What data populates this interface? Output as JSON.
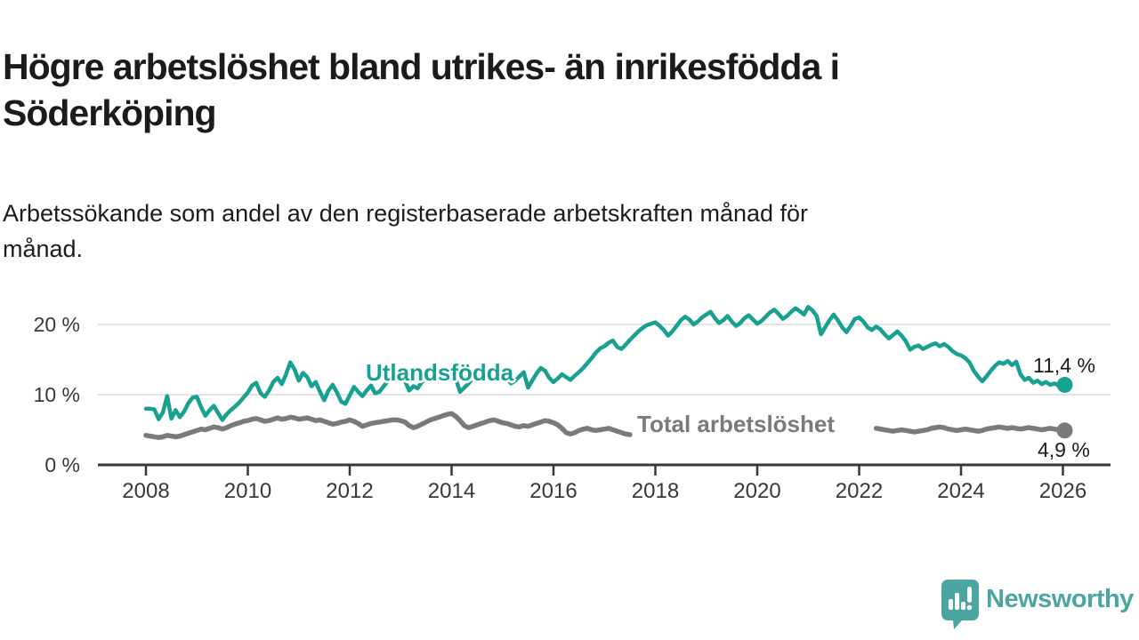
{
  "header": {
    "title_line1": "Högre arbetslöshet bland utrikes- än inrikesfödda i",
    "title_line2": "Söderköping",
    "subtitle_line1": "Arbetssökande som andel av den registerbaserade arbetskraften månad för",
    "subtitle_line2": "månad."
  },
  "footer": {
    "brand": "Newsworthy",
    "logo_icon": "speech-bubble-bar-chart-icon"
  },
  "colors": {
    "series_foreign_born": "#18a191",
    "series_total": "#7a7a7a",
    "axis": "#383838",
    "grid": "#dcdcdc",
    "text": "#1a1a1a",
    "brand_teal": "#4ba6a2",
    "background": "#ffffff"
  },
  "chart_data": {
    "type": "line",
    "title": "Högre arbetslöshet bland utrikes- än inrikesfödda i Söderköping",
    "subtitle": "Arbetssökande som andel av den registerbaserade arbetskraften månad för månad.",
    "unit": "%",
    "grid": "horizontal-only",
    "legend_position": "inline-labels",
    "x_axis": {
      "start_year": 2008,
      "end_year": 2026,
      "points_per_year": 12,
      "tick_years": [
        2008,
        2010,
        2012,
        2014,
        2016,
        2018,
        2020,
        2022,
        2024,
        2026
      ],
      "tick_labels": [
        "2008",
        "2010",
        "2012",
        "2014",
        "2016",
        "2018",
        "2020",
        "2022",
        "2024",
        "2026"
      ]
    },
    "y_axis": {
      "ticks": [
        0,
        10,
        20
      ],
      "tick_labels": [
        "0 %",
        "10 %",
        "20 %"
      ],
      "range": [
        0,
        23.5
      ]
    },
    "series": [
      {
        "name": "Utlandsfödda",
        "color": "#18a191",
        "end_value": 11.4,
        "end_label": "11,4 %",
        "values": [
          8.0,
          8.0,
          7.9,
          6.5,
          7.5,
          9.8,
          6.6,
          7.8,
          6.8,
          7.6,
          8.8,
          9.6,
          9.7,
          8.2,
          7.0,
          7.8,
          8.4,
          7.4,
          6.4,
          7.2,
          7.8,
          8.3,
          8.9,
          9.6,
          10.3,
          11.3,
          11.7,
          10.2,
          9.7,
          10.6,
          11.8,
          12.4,
          11.5,
          12.9,
          14.6,
          13.6,
          12.0,
          13.1,
          12.5,
          11.2,
          11.8,
          10.4,
          9.2,
          10.6,
          11.4,
          10.3,
          9.0,
          8.7,
          9.9,
          11.1,
          10.4,
          9.8,
          10.6,
          11.3,
          10.2,
          10.4,
          11.2,
          11.9,
          12.3,
          12.6,
          12.8,
          12.0,
          10.6,
          11.2,
          10.9,
          11.8,
          12.4,
          12.9,
          12.6,
          13.0,
          13.3,
          13.0,
          12.6,
          12.2,
          10.4,
          11.0,
          11.6,
          12.4,
          12.0,
          12.8,
          13.2,
          12.9,
          13.4,
          13.1,
          12.7,
          12.3,
          11.6,
          12.0,
          12.6,
          13.2,
          11.0,
          12.0,
          13.0,
          13.8,
          13.4,
          12.4,
          11.8,
          12.3,
          12.9,
          12.5,
          12.1,
          12.7,
          13.2,
          13.8,
          14.5,
          15.2,
          16.0,
          16.6,
          16.9,
          17.4,
          17.7,
          16.8,
          16.5,
          17.1,
          17.8,
          18.4,
          19.0,
          19.5,
          19.9,
          20.1,
          20.3,
          19.8,
          19.2,
          18.4,
          19.0,
          19.8,
          20.6,
          21.1,
          20.7,
          20.0,
          20.4,
          21.0,
          21.4,
          21.8,
          20.9,
          20.2,
          20.6,
          21.2,
          20.4,
          19.8,
          20.2,
          20.9,
          21.3,
          20.7,
          20.1,
          20.5,
          21.1,
          21.7,
          22.1,
          21.5,
          20.8,
          21.2,
          21.8,
          22.3,
          21.9,
          21.4,
          22.5,
          22.0,
          21.2,
          18.6,
          19.6,
          20.6,
          21.4,
          20.6,
          19.6,
          18.9,
          19.8,
          20.8,
          21.0,
          20.4,
          19.6,
          19.2,
          19.7,
          19.3,
          18.6,
          18.0,
          18.5,
          19.0,
          18.4,
          17.6,
          16.4,
          16.8,
          17.0,
          16.5,
          16.8,
          17.1,
          17.3,
          16.9,
          17.2,
          16.8,
          16.2,
          15.8,
          15.6,
          15.2,
          14.6,
          13.4,
          12.6,
          11.9,
          12.6,
          13.4,
          14.1,
          14.6,
          14.4,
          14.8,
          14.2,
          14.7,
          12.9,
          12.1,
          12.4,
          11.7,
          12.0,
          11.5,
          11.8,
          11.4,
          11.6,
          11.3,
          11.4
        ]
      },
      {
        "name": "Total arbetslöshet",
        "color": "#7a7a7a",
        "end_value": 4.9,
        "end_label": "4,9 %",
        "values": [
          4.2,
          4.1,
          4.0,
          3.9,
          4.0,
          4.2,
          4.1,
          4.0,
          4.1,
          4.3,
          4.5,
          4.7,
          4.9,
          5.1,
          5.0,
          5.2,
          5.4,
          5.3,
          5.1,
          5.3,
          5.6,
          5.8,
          6.0,
          6.2,
          6.3,
          6.5,
          6.6,
          6.4,
          6.2,
          6.3,
          6.5,
          6.7,
          6.5,
          6.6,
          6.8,
          6.7,
          6.5,
          6.6,
          6.7,
          6.5,
          6.3,
          6.4,
          6.2,
          6.0,
          5.8,
          5.9,
          6.1,
          6.2,
          6.4,
          6.2,
          5.9,
          5.5,
          5.7,
          5.9,
          6.0,
          6.1,
          6.2,
          6.3,
          6.4,
          6.4,
          6.3,
          6.1,
          5.6,
          5.3,
          5.5,
          5.8,
          6.1,
          6.4,
          6.6,
          6.8,
          7.0,
          7.2,
          7.3,
          6.9,
          6.3,
          5.6,
          5.3,
          5.5,
          5.7,
          5.9,
          6.1,
          6.3,
          6.4,
          6.2,
          6.0,
          5.9,
          5.7,
          5.5,
          5.4,
          5.6,
          5.5,
          5.7,
          5.9,
          6.1,
          6.3,
          6.2,
          6.0,
          5.7,
          5.2,
          4.6,
          4.4,
          4.6,
          4.9,
          5.1,
          5.2,
          5.0,
          4.9,
          5.0,
          5.1,
          5.2,
          5.0,
          4.8,
          4.6,
          4.4,
          4.3,
          null,
          null,
          null,
          null,
          null,
          null,
          null,
          null,
          null,
          null,
          null,
          null,
          null,
          null,
          null,
          null,
          null,
          null,
          null,
          null,
          null,
          null,
          null,
          null,
          null,
          null,
          null,
          null,
          null,
          null,
          null,
          null,
          null,
          null,
          null,
          null,
          null,
          null,
          null,
          null,
          null,
          null,
          null,
          null,
          null,
          null,
          null,
          null,
          null,
          null,
          null,
          null,
          null,
          null,
          null,
          null,
          null,
          5.2,
          5.1,
          5.0,
          4.9,
          4.8,
          4.9,
          5.0,
          4.9,
          4.8,
          4.7,
          4.8,
          4.9,
          5.0,
          5.2,
          5.3,
          5.4,
          5.3,
          5.1,
          5.0,
          4.9,
          5.0,
          5.1,
          5.0,
          4.9,
          4.8,
          4.9,
          5.1,
          5.2,
          5.3,
          5.4,
          5.3,
          5.2,
          5.3,
          5.2,
          5.1,
          5.2,
          5.3,
          5.2,
          5.1,
          5.0,
          5.1,
          5.2,
          5.1,
          5.0,
          4.9
        ]
      }
    ]
  }
}
